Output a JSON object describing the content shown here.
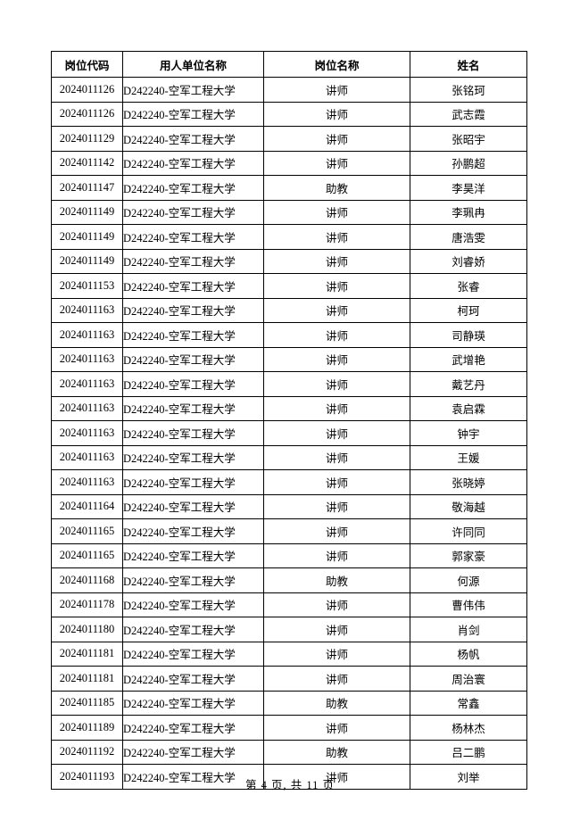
{
  "document": {
    "footer": "第 4 页, 共 11 页"
  },
  "table": {
    "headers": [
      "岗位代码",
      "用人单位名称",
      "岗位名称",
      "姓名"
    ],
    "rows": [
      {
        "code": "2024011126",
        "employer": "D242240-空军工程大学",
        "position": "讲师",
        "name": "张铭珂"
      },
      {
        "code": "2024011126",
        "employer": "D242240-空军工程大学",
        "position": "讲师",
        "name": "武志霞"
      },
      {
        "code": "2024011129",
        "employer": "D242240-空军工程大学",
        "position": "讲师",
        "name": "张昭宇"
      },
      {
        "code": "2024011142",
        "employer": "D242240-空军工程大学",
        "position": "讲师",
        "name": "孙鹏超"
      },
      {
        "code": "2024011147",
        "employer": "D242240-空军工程大学",
        "position": "助教",
        "name": "李昊洋"
      },
      {
        "code": "2024011149",
        "employer": "D242240-空军工程大学",
        "position": "讲师",
        "name": "李珮冉"
      },
      {
        "code": "2024011149",
        "employer": "D242240-空军工程大学",
        "position": "讲师",
        "name": "唐浩雯"
      },
      {
        "code": "2024011149",
        "employer": "D242240-空军工程大学",
        "position": "讲师",
        "name": "刘睿娇"
      },
      {
        "code": "2024011153",
        "employer": "D242240-空军工程大学",
        "position": "讲师",
        "name": "张睿"
      },
      {
        "code": "2024011163",
        "employer": "D242240-空军工程大学",
        "position": "讲师",
        "name": "柯珂"
      },
      {
        "code": "2024011163",
        "employer": "D242240-空军工程大学",
        "position": "讲师",
        "name": "司静瑛"
      },
      {
        "code": "2024011163",
        "employer": "D242240-空军工程大学",
        "position": "讲师",
        "name": "武增艳"
      },
      {
        "code": "2024011163",
        "employer": "D242240-空军工程大学",
        "position": "讲师",
        "name": "戴艺丹"
      },
      {
        "code": "2024011163",
        "employer": "D242240-空军工程大学",
        "position": "讲师",
        "name": "袁启霖"
      },
      {
        "code": "2024011163",
        "employer": "D242240-空军工程大学",
        "position": "讲师",
        "name": "钟宇"
      },
      {
        "code": "2024011163",
        "employer": "D242240-空军工程大学",
        "position": "讲师",
        "name": "王媛"
      },
      {
        "code": "2024011163",
        "employer": "D242240-空军工程大学",
        "position": "讲师",
        "name": "张晓婷"
      },
      {
        "code": "2024011164",
        "employer": "D242240-空军工程大学",
        "position": "讲师",
        "name": "敬海越"
      },
      {
        "code": "2024011165",
        "employer": "D242240-空军工程大学",
        "position": "讲师",
        "name": "许同同"
      },
      {
        "code": "2024011165",
        "employer": "D242240-空军工程大学",
        "position": "讲师",
        "name": "郭家豪"
      },
      {
        "code": "2024011168",
        "employer": "D242240-空军工程大学",
        "position": "助教",
        "name": "何源"
      },
      {
        "code": "2024011178",
        "employer": "D242240-空军工程大学",
        "position": "讲师",
        "name": "曹伟伟"
      },
      {
        "code": "2024011180",
        "employer": "D242240-空军工程大学",
        "position": "讲师",
        "name": "肖剑"
      },
      {
        "code": "2024011181",
        "employer": "D242240-空军工程大学",
        "position": "讲师",
        "name": "杨帆"
      },
      {
        "code": "2024011181",
        "employer": "D242240-空军工程大学",
        "position": "讲师",
        "name": "周治寰"
      },
      {
        "code": "2024011185",
        "employer": "D242240-空军工程大学",
        "position": "助教",
        "name": "常鑫"
      },
      {
        "code": "2024011189",
        "employer": "D242240-空军工程大学",
        "position": "讲师",
        "name": "杨林杰"
      },
      {
        "code": "2024011192",
        "employer": "D242240-空军工程大学",
        "position": "助教",
        "name": "吕二鹏"
      },
      {
        "code": "2024011193",
        "employer": "D242240-空军工程大学",
        "position": "讲师",
        "name": "刘举"
      }
    ]
  }
}
